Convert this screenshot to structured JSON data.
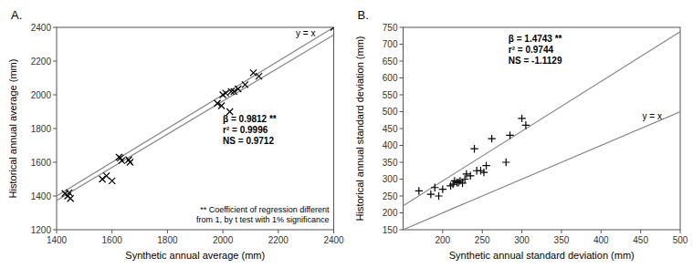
{
  "chart_data": [
    {
      "type": "scatter",
      "title": "A.",
      "xlabel": "Synthetic annual average (mm)",
      "ylabel": "Historical annual average (mm)",
      "xlim": [
        1400,
        2400
      ],
      "ylim": [
        1200,
        2400
      ],
      "xticks": [
        1400,
        1600,
        1800,
        2000,
        2200,
        2400
      ],
      "yticks": [
        1200,
        1400,
        1600,
        1800,
        2000,
        2200,
        2400
      ],
      "grid": false,
      "series": [
        {
          "type": "scatter",
          "marker": "x",
          "color": "#000000",
          "x": [
            1430,
            1440,
            1445,
            1450,
            1565,
            1580,
            1600,
            1625,
            1630,
            1635,
            1660,
            1665,
            1980,
            1995,
            2000,
            2010,
            2025,
            2030,
            2040,
            2055,
            2080,
            2110,
            2130,
            2400
          ],
          "values": [
            1415,
            1400,
            1420,
            1385,
            1500,
            1520,
            1490,
            1630,
            1625,
            1610,
            1615,
            1600,
            1950,
            1935,
            2000,
            2010,
            1900,
            2020,
            2020,
            2035,
            2060,
            2130,
            2110,
            2400
          ]
        },
        {
          "type": "line",
          "color": "#888888",
          "x": [
            1400,
            2400
          ],
          "values": [
            1400,
            2400
          ]
        },
        {
          "type": "line",
          "color": "#888888",
          "x": [
            1400,
            2400
          ],
          "values": [
            1373.68,
            2355.08
          ]
        }
      ],
      "annotations": [
        "y = x",
        "β = 0.9812 **\nr² = 0.9996\nNS = 0.9712",
        "** Coefficient of regression different\nfrom 1, by t test with 1% significance"
      ]
    },
    {
      "type": "scatter",
      "title": "B.",
      "xlabel": "Synthetic annual standard deviation (mm)",
      "ylabel": "Historical annual standard deviation (mm)",
      "xlim": [
        150,
        500
      ],
      "ylim": [
        150,
        750
      ],
      "xticks": [
        200,
        250,
        300,
        350,
        400,
        450,
        500
      ],
      "yticks": [
        150,
        200,
        250,
        300,
        350,
        400,
        450,
        500,
        550,
        600,
        650,
        700,
        750
      ],
      "grid": false,
      "series": [
        {
          "type": "scatter",
          "marker": "plus",
          "color": "#000000",
          "x": [
            170,
            185,
            190,
            195,
            200,
            210,
            213,
            215,
            218,
            220,
            222,
            225,
            228,
            230,
            235,
            240,
            243,
            248,
            252,
            255,
            262,
            280,
            285,
            300,
            305
          ],
          "values": [
            265,
            255,
            275,
            250,
            270,
            280,
            285,
            295,
            290,
            290,
            295,
            288,
            300,
            315,
            310,
            390,
            325,
            325,
            320,
            340,
            420,
            350,
            430,
            480,
            460
          ]
        },
        {
          "type": "line",
          "color": "#888888",
          "x": [
            150,
            500
          ],
          "values": [
            150,
            500
          ]
        },
        {
          "type": "line",
          "color": "#888888",
          "x": [
            150,
            500
          ],
          "values": [
            221.145,
            737.15
          ]
        }
      ],
      "annotations": [
        "y = x",
        "β = 1.4743 **\nr² = 0.9744\nNS = -1.1129"
      ]
    }
  ]
}
